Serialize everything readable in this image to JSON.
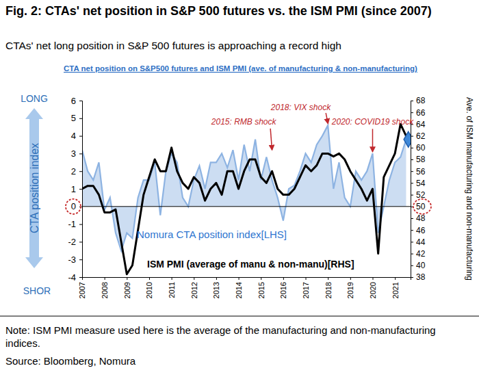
{
  "chart_data": {
    "type": "line",
    "title": "Fig. 2: CTAs' net position in S&P 500 futures vs. the ISM PMI (since 2007)",
    "subtitle": "CTAs' net long position in S&P 500 futures is approaching a record high",
    "inner_title": "CTA net position on S&P500 futures and ISM PMI (ave. of manufacturing & non-manufacturing)",
    "ylabel": "CTA position index",
    "ylabel_top": "LONG",
    "ylabel_bottom": "SHOR",
    "y2label": "Ave. of ISM manufacturing and non-manufacturing",
    "note": "Note: ISM PMI measure used here is the average of the manufacturing and non-manufacturing indices.",
    "source": "Source: Bloomberg, Nomura",
    "grid": false,
    "xlim": [
      2007,
      2021.7
    ],
    "xticks": [
      2007,
      2008,
      2009,
      2010,
      2011,
      2012,
      2013,
      2014,
      2015,
      2016,
      2017,
      2018,
      2019,
      2020,
      2021
    ],
    "ylim": [
      -4,
      6
    ],
    "yticks": [
      -4,
      -3,
      -2,
      -1,
      0,
      1,
      2,
      3,
      4,
      5,
      6
    ],
    "y2lim": [
      38,
      68
    ],
    "y2ticks": [
      38,
      40,
      42,
      44,
      46,
      48,
      50,
      52,
      54,
      56,
      58,
      60,
      62,
      64,
      66,
      68
    ],
    "circled_ticks": {
      "y": 0,
      "y2": 50
    },
    "series": [
      {
        "name": "Nomura CTA position index[LHS]",
        "type": "area",
        "color": "#8db3e2",
        "x": [
          2007,
          2007.25,
          2007.5,
          2007.75,
          2008,
          2008.25,
          2008.5,
          2008.75,
          2009,
          2009.25,
          2009.5,
          2009.75,
          2010,
          2010.25,
          2010.5,
          2010.75,
          2011,
          2011.25,
          2011.5,
          2011.75,
          2012,
          2012.25,
          2012.5,
          2012.75,
          2013,
          2013.25,
          2013.5,
          2013.75,
          2014,
          2014.25,
          2014.5,
          2014.75,
          2015,
          2015.25,
          2015.5,
          2015.75,
          2016,
          2016.25,
          2016.5,
          2016.75,
          2017,
          2017.25,
          2017.5,
          2017.75,
          2018,
          2018.25,
          2018.5,
          2018.75,
          2019,
          2019.25,
          2019.5,
          2019.75,
          2020,
          2020.25,
          2020.5,
          2020.75,
          2021,
          2021.25,
          2021.5
        ],
        "values": [
          3.2,
          2.0,
          1.5,
          2.5,
          -0.2,
          0.5,
          -1.5,
          -2.5,
          -1.5,
          -1.8,
          0.5,
          1.5,
          1.5,
          2.5,
          -0.5,
          2.0,
          3.0,
          2.5,
          0.5,
          0.0,
          1.5,
          2.3,
          1.0,
          2.5,
          2.5,
          3.0,
          2.2,
          3.2,
          1.5,
          3.5,
          2.0,
          3.8,
          1.5,
          2.8,
          1.5,
          0.5,
          -0.8,
          1.0,
          1.2,
          2.0,
          3.0,
          2.5,
          3.5,
          4.0,
          4.6,
          1.0,
          2.5,
          0.5,
          0.0,
          2.0,
          1.5,
          2.0,
          3.0,
          -1.5,
          0.0,
          1.5,
          2.5,
          2.8,
          3.8
        ]
      },
      {
        "name": "ISM PMI (average of manu & non-manu)[RHS]",
        "type": "line",
        "axis": "y2",
        "color": "#000000",
        "x": [
          2007,
          2007.25,
          2007.5,
          2007.75,
          2008,
          2008.25,
          2008.5,
          2008.75,
          2009,
          2009.25,
          2009.5,
          2009.75,
          2010,
          2010.25,
          2010.5,
          2010.75,
          2011,
          2011.25,
          2011.5,
          2011.75,
          2012,
          2012.25,
          2012.5,
          2012.75,
          2013,
          2013.25,
          2013.5,
          2013.75,
          2014,
          2014.25,
          2014.5,
          2014.75,
          2015,
          2015.25,
          2015.5,
          2015.75,
          2016,
          2016.25,
          2016.5,
          2016.75,
          2017,
          2017.25,
          2017.5,
          2017.75,
          2018,
          2018.25,
          2018.5,
          2018.75,
          2019,
          2019.25,
          2019.5,
          2019.75,
          2020,
          2020.25,
          2020.5,
          2020.75,
          2021,
          2021.25,
          2021.5
        ],
        "values": [
          53,
          53.5,
          53.5,
          52,
          49,
          49,
          49.5,
          44,
          38.5,
          40,
          46,
          52,
          55,
          58,
          56,
          56,
          60,
          56,
          54,
          53,
          55,
          54,
          51,
          53,
          54,
          52,
          56,
          56,
          53,
          56,
          58,
          58,
          55,
          54,
          56,
          53,
          52,
          52,
          53,
          55,
          57,
          56,
          57,
          59,
          59,
          58.5,
          59,
          58,
          56,
          54.5,
          53,
          51,
          53,
          42,
          55,
          57,
          59,
          64,
          62
        ]
      },
      {
        "type": "scatter",
        "marker": "diamond",
        "color": "#3f88d8",
        "x": [
          2021.6
        ],
        "values": [
          3.8
        ]
      }
    ],
    "annotations": [
      {
        "text": "2015: RMB shock",
        "x": 2015.5,
        "y": 3.1
      },
      {
        "text": "2018: VIX shock",
        "x": 2018.0,
        "y": 4.6
      },
      {
        "text": "2020: COVID19 shock",
        "x": 2020.0,
        "y": 3.0
      }
    ]
  }
}
